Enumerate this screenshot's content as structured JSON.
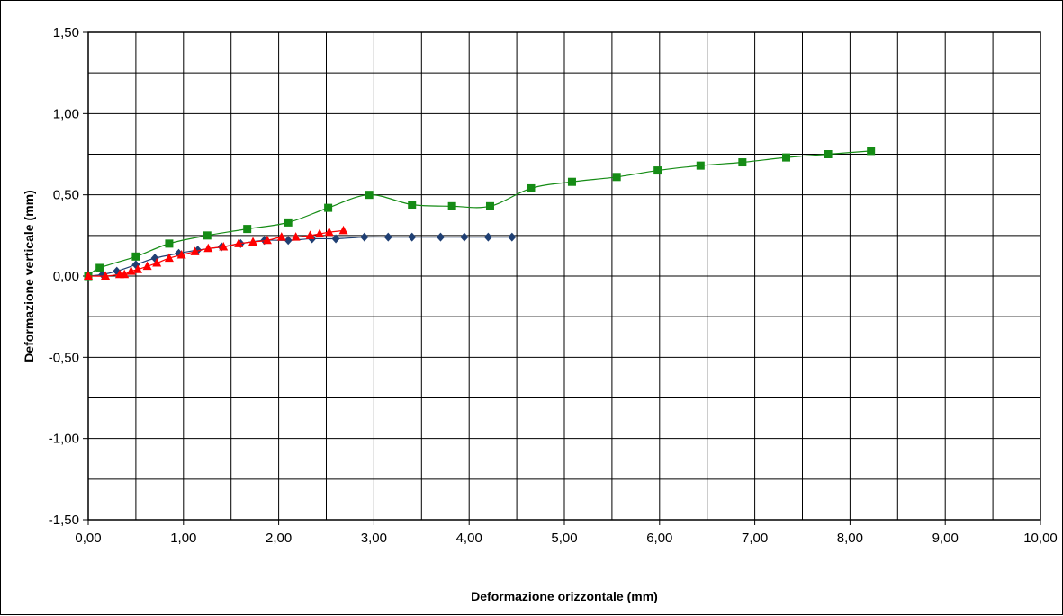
{
  "chart_data": {
    "type": "scatter",
    "title": "",
    "xlabel": "Deformazione orizzontale (mm)",
    "ylabel": "Deformazione verticale (mm)",
    "xlim": [
      0,
      10
    ],
    "ylim": [
      -1.5,
      1.5
    ],
    "grid": true,
    "x_ticks": [
      0,
      1,
      2,
      3,
      4,
      5,
      6,
      7,
      8,
      9,
      10
    ],
    "x_tick_labels": [
      "0,00",
      "1,00",
      "2,00",
      "3,00",
      "4,00",
      "5,00",
      "6,00",
      "7,00",
      "8,00",
      "9,00",
      "10,00"
    ],
    "y_ticks": [
      -1.5,
      -1.0,
      -0.5,
      0.0,
      0.5,
      1.0,
      1.5
    ],
    "y_tick_labels": [
      "-1,50",
      "-1,00",
      "-0,50",
      "0,00",
      "0,50",
      "1,00",
      "1,50"
    ],
    "series": [
      {
        "marker": "diamond",
        "color": "#1f3f73",
        "x": [
          0.0,
          0.15,
          0.3,
          0.5,
          0.7,
          0.95,
          1.15,
          1.4,
          1.6,
          1.85,
          2.1,
          2.35,
          2.6,
          2.9,
          3.15,
          3.4,
          3.7,
          3.95,
          4.2,
          4.45
        ],
        "y": [
          0.0,
          0.01,
          0.03,
          0.07,
          0.11,
          0.14,
          0.16,
          0.18,
          0.2,
          0.22,
          0.22,
          0.23,
          0.23,
          0.24,
          0.24,
          0.24,
          0.24,
          0.24,
          0.24,
          0.24
        ]
      },
      {
        "marker": "square",
        "color": "#158c15",
        "x": [
          0.0,
          0.12,
          0.5,
          0.85,
          1.25,
          1.67,
          2.1,
          2.52,
          2.95,
          3.4,
          3.82,
          4.22,
          4.65,
          5.08,
          5.55,
          5.98,
          6.43,
          6.87,
          7.33,
          7.77,
          8.22
        ],
        "y": [
          0.0,
          0.05,
          0.12,
          0.2,
          0.25,
          0.29,
          0.33,
          0.42,
          0.5,
          0.44,
          0.43,
          0.43,
          0.54,
          0.58,
          0.61,
          0.65,
          0.68,
          0.7,
          0.73,
          0.75,
          0.77
        ]
      },
      {
        "marker": "triangle",
        "color": "#ff0000",
        "x": [
          0.0,
          0.18,
          0.33,
          0.38,
          0.45,
          0.52,
          0.62,
          0.72,
          0.85,
          0.98,
          1.12,
          1.26,
          1.42,
          1.58,
          1.73,
          1.88,
          2.03,
          2.18,
          2.33,
          2.43,
          2.53,
          2.68
        ],
        "y": [
          0.0,
          0.0,
          0.01,
          0.01,
          0.03,
          0.04,
          0.06,
          0.08,
          0.11,
          0.13,
          0.15,
          0.17,
          0.18,
          0.2,
          0.21,
          0.22,
          0.24,
          0.24,
          0.25,
          0.26,
          0.27,
          0.28
        ]
      }
    ]
  }
}
